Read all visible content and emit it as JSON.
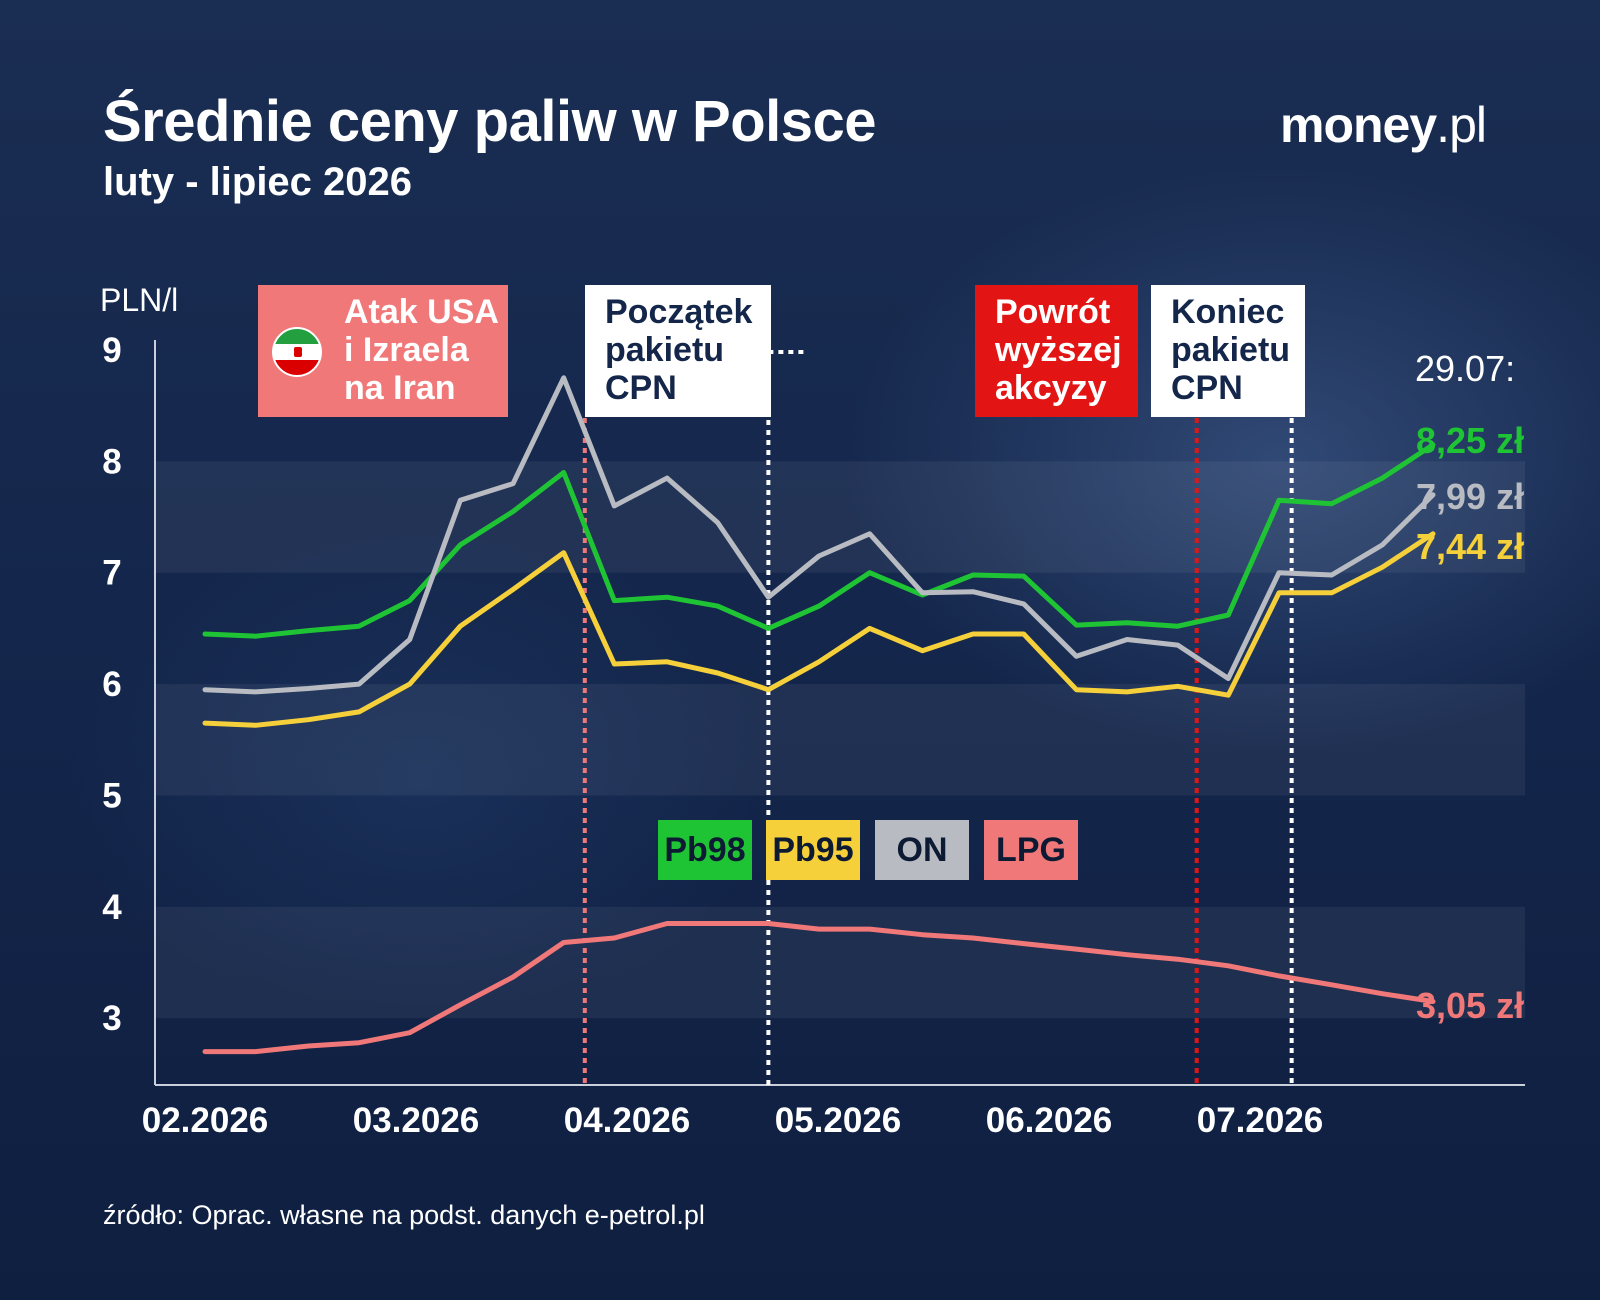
{
  "chart_data": {
    "type": "line",
    "title": "Średnie ceny paliw w Polsce",
    "subtitle": "luty - lipiec 2026",
    "ylabel": "PLN/l",
    "ylim": [
      2.4,
      9
    ],
    "yticks": [
      "9",
      "8",
      "7",
      "6",
      "5",
      "4",
      "3"
    ],
    "xticks": [
      "02.2026",
      "03.2026",
      "04.2026",
      "05.2026",
      "06.2026",
      "07.2026"
    ],
    "x_range": [
      0.9,
      7.5
    ],
    "x_tick_values": [
      1,
      2,
      3,
      4,
      5,
      6
    ],
    "x": [
      1.0,
      1.24,
      1.49,
      1.73,
      1.97,
      2.21,
      2.46,
      2.7,
      2.94,
      3.19,
      3.43,
      3.67,
      3.91,
      4.15,
      4.4,
      4.64,
      4.88,
      5.13,
      5.37,
      5.61,
      5.85,
      6.09,
      6.34,
      6.58,
      6.82,
      7.06,
      7.31
    ],
    "series": [
      {
        "name": "Pb98",
        "color": "#1fc435",
        "values": [
          6.45,
          6.43,
          6.48,
          6.52,
          6.75,
          7.25,
          7.55,
          7.9,
          6.75,
          6.78,
          6.7,
          6.5,
          6.7,
          7.0,
          6.8,
          6.98,
          6.97,
          6.53,
          6.55,
          6.52,
          6.62,
          7.65,
          7.62,
          7.85,
          8.15,
          null,
          null
        ]
      },
      {
        "name": "Pb95",
        "color": "#f5d03a",
        "values": [
          5.65,
          5.63,
          5.68,
          5.75,
          6.0,
          6.52,
          6.85,
          7.18,
          6.18,
          6.2,
          6.1,
          5.95,
          6.2,
          6.5,
          6.3,
          6.45,
          6.45,
          5.95,
          5.93,
          5.98,
          5.9,
          6.82,
          6.82,
          7.05,
          7.35,
          null,
          null
        ]
      },
      {
        "name": "ON",
        "color": "#b8bcc2",
        "values": [
          5.95,
          5.93,
          5.96,
          6.0,
          6.4,
          7.65,
          7.8,
          8.75,
          7.6,
          7.85,
          7.45,
          6.78,
          7.15,
          7.35,
          6.82,
          6.83,
          6.72,
          6.25,
          6.4,
          6.35,
          6.05,
          7.0,
          6.98,
          7.25,
          7.7,
          null,
          null
        ]
      },
      {
        "name": "LPG",
        "color": "#f07878",
        "values": [
          2.7,
          2.7,
          2.75,
          2.78,
          2.87,
          3.12,
          3.37,
          3.68,
          3.72,
          3.85,
          3.85,
          3.85,
          3.8,
          3.8,
          3.75,
          3.72,
          3.67,
          3.62,
          3.57,
          3.53,
          3.47,
          3.38,
          3.3,
          3.22,
          3.15,
          null,
          null
        ]
      }
    ],
    "events": [
      {
        "label_lines": [
          "Atak USA",
          "i Izraela",
          "na Iran"
        ],
        "x": 2.8,
        "line_color": "#f07878",
        "box_bg": "#f07878",
        "text_color": "#ffffff",
        "icon": "iran-flag-icon"
      },
      {
        "label_lines": [
          "Początek",
          "pakietu",
          "CPN"
        ],
        "x": 3.67,
        "line_color": "#ffffff",
        "box_bg": "#ffffff",
        "text_color": "#14264a"
      },
      {
        "label_lines": [
          "Powrót",
          "wyższej",
          "akcyzy"
        ],
        "x": 5.7,
        "line_color": "#e31414",
        "box_bg": "#e31414",
        "text_color": "#ffffff"
      },
      {
        "label_lines": [
          "Koniec",
          "pakietu",
          "CPN"
        ],
        "x": 6.15,
        "line_color": "#ffffff",
        "box_bg": "#ffffff",
        "text_color": "#14264a"
      }
    ],
    "end_date": "29.07:",
    "end_labels": [
      {
        "series": "Pb98",
        "text": "8,25 zł",
        "color": "#1fc435"
      },
      {
        "series": "ON",
        "text": "7,99 zł",
        "color": "#b8bcc2"
      },
      {
        "series": "Pb95",
        "text": "7,44 zł",
        "color": "#f5d03a"
      },
      {
        "series": "LPG",
        "text": "3,05 zł",
        "color": "#f07878"
      }
    ],
    "legend": [
      {
        "label": "Pb98",
        "color": "#1fc435"
      },
      {
        "label": "Pb95",
        "color": "#f5d03a"
      },
      {
        "label": "ON",
        "color": "#b8bcc2"
      },
      {
        "label": "LPG",
        "color": "#f07878"
      }
    ],
    "grid": "alternating bands"
  },
  "brand": {
    "name_bold": "money",
    "name_rest": ".pl"
  },
  "source": "źródło: Oprac. własne na podst. danych e-petrol.pl"
}
